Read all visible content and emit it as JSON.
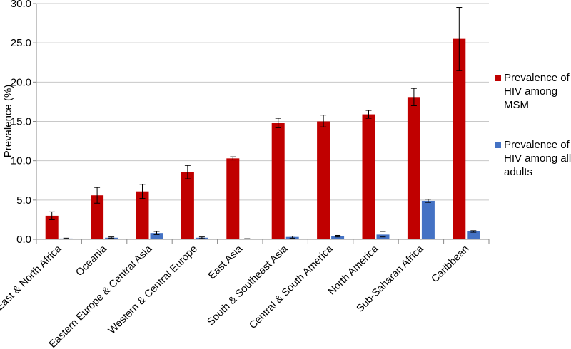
{
  "chart_data": {
    "type": "bar",
    "title": "",
    "xlabel": "",
    "ylabel": "Prevalence (%)",
    "ylim": [
      0,
      30
    ],
    "yticks": [
      "0.0",
      "5.0",
      "10.0",
      "15.0",
      "20.0",
      "25.0",
      "30.0"
    ],
    "grid": true,
    "legend_position": "right",
    "categories": [
      "Mid East & North Africa",
      "Oceania",
      "Eastern Europe & Central Asia",
      "Western & Central Europe",
      "East Asia",
      "South & Southeast Asia",
      "Central & South America",
      "North America",
      "Sub-Saharan Africa",
      "Caribbean"
    ],
    "series": [
      {
        "name": "Prevalence of HIV among MSM",
        "legend_lines": [
          "Prevalence of",
          "HIV among",
          "MSM"
        ],
        "color": "#c00000",
        "values": [
          3.0,
          5.6,
          6.1,
          8.6,
          10.3,
          14.8,
          15.0,
          15.9,
          18.1,
          25.5
        ],
        "error_low": [
          2.5,
          4.6,
          5.2,
          7.7,
          10.1,
          14.2,
          14.3,
          15.4,
          17.0,
          21.5
        ],
        "error_high": [
          3.5,
          6.6,
          7.0,
          9.4,
          10.5,
          15.4,
          15.8,
          16.4,
          19.2,
          29.5
        ]
      },
      {
        "name": "Prevalence of HIV among all adults",
        "legend_lines": [
          "Prevalence of",
          "HIV among all",
          "adults"
        ],
        "color": "#4472c4",
        "values": [
          0.1,
          0.2,
          0.8,
          0.2,
          0.05,
          0.3,
          0.4,
          0.6,
          4.9,
          1.0
        ],
        "error_low": [
          0.05,
          0.15,
          0.6,
          0.1,
          0.03,
          0.15,
          0.3,
          0.3,
          4.7,
          0.9
        ],
        "error_high": [
          0.15,
          0.3,
          1.0,
          0.3,
          0.08,
          0.4,
          0.5,
          1.0,
          5.1,
          1.1
        ]
      }
    ]
  }
}
